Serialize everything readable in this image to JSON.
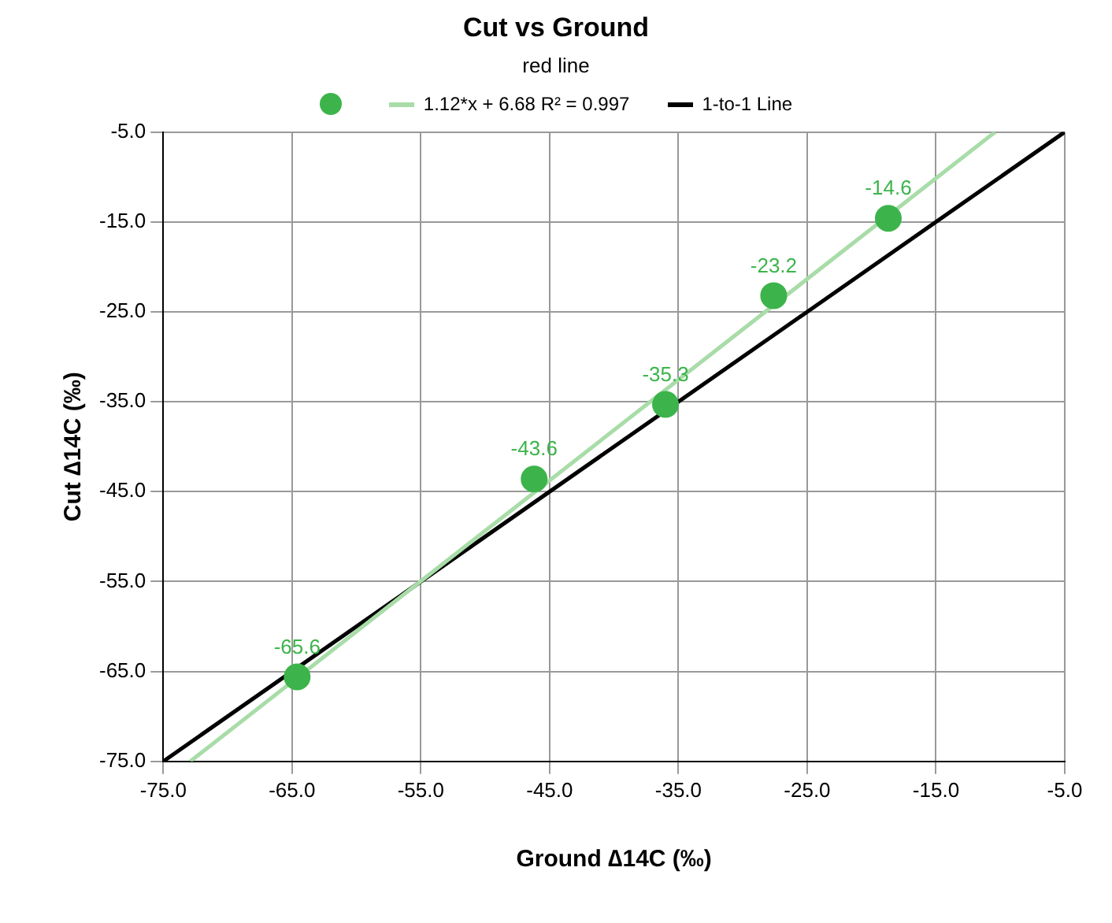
{
  "chart_data": {
    "type": "scatter",
    "title": "Cut vs Ground",
    "subtitle": "red line",
    "xlabel": "Ground ∆14C (‰)",
    "ylabel": "Cut ∆14C (‰)",
    "series": [
      {
        "color": "#3cb44b",
        "x": [
          -64.6,
          -46.2,
          -36.0,
          -27.6,
          -18.7
        ],
        "values": [
          -65.6,
          -43.6,
          -35.3,
          -23.2,
          -14.6
        ],
        "value_labels": [
          "-65.6",
          "-43.6",
          "-35.3",
          "-23.2",
          "-14.6"
        ],
        "marker": "circle"
      },
      {
        "type": "line",
        "name": "1.12*x + 6.68 R² = 0.997",
        "color": "#a8dca8",
        "x": [
          -72.9,
          -10.4
        ],
        "values": [
          -75.0,
          -5.0
        ],
        "marker": "none"
      },
      {
        "type": "line",
        "name": "1-to-1 Line",
        "color": "#000000",
        "x": [
          -75.0,
          -5.0
        ],
        "values": [
          -75.0,
          -5.0
        ],
        "marker": "none"
      }
    ],
    "xlim": [
      -75,
      -5
    ],
    "xticks": [
      {
        "value": -75,
        "label": "-75.0"
      },
      {
        "value": -65,
        "label": "-65.0"
      },
      {
        "value": -55,
        "label": "-55.0"
      },
      {
        "value": -45,
        "label": "-45.0"
      },
      {
        "value": -35,
        "label": "-35.0"
      },
      {
        "value": -25,
        "label": "-25.0"
      },
      {
        "value": -15,
        "label": "-15.0"
      },
      {
        "value": -5,
        "label": "-5.0"
      }
    ],
    "ylim": [
      -75,
      -5
    ],
    "yticks": [
      {
        "value": -75,
        "label": "-75.0"
      },
      {
        "value": -65,
        "label": "-65.0"
      },
      {
        "value": -55,
        "label": "-55.0"
      },
      {
        "value": -45,
        "label": "-45.0"
      },
      {
        "value": -35,
        "label": "-35.0"
      },
      {
        "value": -25,
        "label": "-25.0"
      },
      {
        "value": -15,
        "label": "-15.0"
      },
      {
        "value": -5,
        "label": "-5.0"
      }
    ],
    "grid": true,
    "legend": "top"
  }
}
